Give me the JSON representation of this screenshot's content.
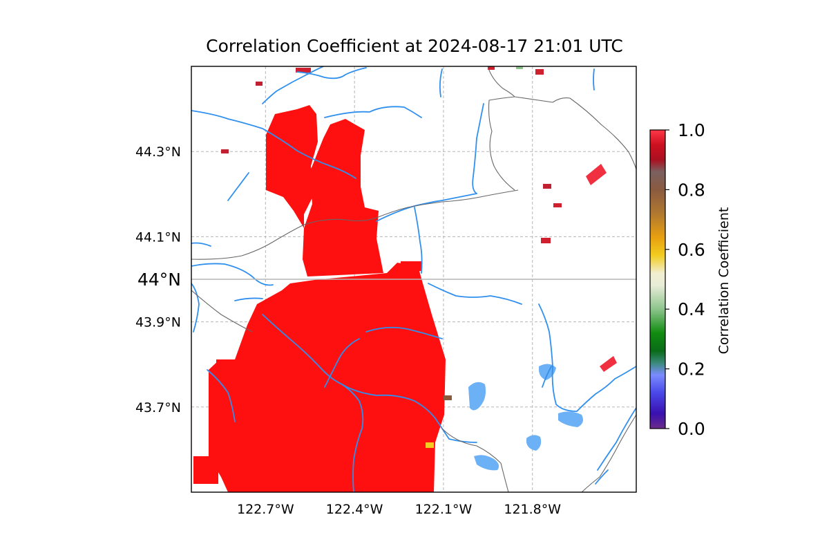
{
  "figure": {
    "title": "Correlation Coefficient at 2024-08-17 21:01 UTC"
  },
  "map": {
    "lon_range": [
      -122.95,
      -121.45
    ],
    "lat_range": [
      43.5,
      44.5
    ],
    "lat_ticks": [
      {
        "value": 44.3,
        "label": "44.3°N"
      },
      {
        "value": 44.1,
        "label": "44.1°N"
      },
      {
        "value": 43.9,
        "label": "43.9°N"
      },
      {
        "value": 43.7,
        "label": "43.7°N"
      }
    ],
    "lon_ticks": [
      {
        "value": -122.7,
        "label": "122.7°W"
      },
      {
        "value": -122.4,
        "label": "122.4°W"
      },
      {
        "value": -122.1,
        "label": "122.1°W"
      },
      {
        "value": -121.8,
        "label": "121.8°W"
      }
    ],
    "reference_line": {
      "value": 44.0,
      "label": "44°N"
    },
    "colors": {
      "water": "#2f8fef",
      "lake": "#6cb0f5",
      "border": "#666666",
      "grid": "#b5b5b5",
      "echo": "#ff1010"
    }
  },
  "colorbar": {
    "label": "Correlation Coefficient",
    "range": [
      0.0,
      1.0
    ],
    "ticks": [
      {
        "value": 0.0,
        "label": "0.0"
      },
      {
        "value": 0.2,
        "label": "0.2"
      },
      {
        "value": 0.4,
        "label": "0.4"
      },
      {
        "value": 0.6,
        "label": "0.6"
      },
      {
        "value": 0.8,
        "label": "0.8"
      },
      {
        "value": 1.0,
        "label": "1.0"
      }
    ],
    "stops": [
      {
        "value": 0.0,
        "color": "#6b2c8a"
      },
      {
        "value": 0.05,
        "color": "#3a10b0"
      },
      {
        "value": 0.12,
        "color": "#4a48e8"
      },
      {
        "value": 0.18,
        "color": "#7a8cff"
      },
      {
        "value": 0.22,
        "color": "#3a8a7a"
      },
      {
        "value": 0.26,
        "color": "#0a6a18"
      },
      {
        "value": 0.32,
        "color": "#108c10"
      },
      {
        "value": 0.4,
        "color": "#8cc48c"
      },
      {
        "value": 0.48,
        "color": "#e8ecd8"
      },
      {
        "value": 0.52,
        "color": "#f2eed0"
      },
      {
        "value": 0.58,
        "color": "#f2cc20"
      },
      {
        "value": 0.64,
        "color": "#e8a010"
      },
      {
        "value": 0.72,
        "color": "#b07830"
      },
      {
        "value": 0.8,
        "color": "#8a5a40"
      },
      {
        "value": 0.86,
        "color": "#7a6060"
      },
      {
        "value": 0.9,
        "color": "#aa1020"
      },
      {
        "value": 0.95,
        "color": "#cc1020"
      },
      {
        "value": 1.0,
        "color": "#ff3848"
      }
    ]
  }
}
